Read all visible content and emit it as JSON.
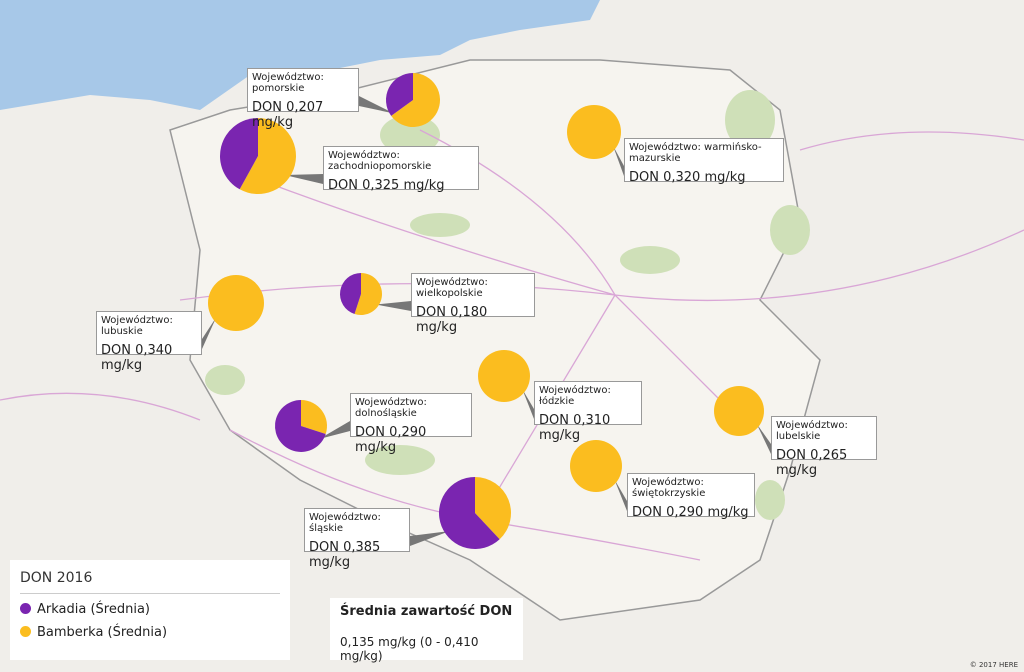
{
  "regions": [
    {
      "label": "Województwo: pomorskie",
      "value": "DON 0,207 mg/kg",
      "shares": [
        35,
        65
      ]
    },
    {
      "label": "Województwo: zachodniopomorskie",
      "value": "DON 0,325 mg/kg",
      "shares": [
        42,
        58
      ]
    },
    {
      "label": "Województwo: warmińsko-mazurskie",
      "value": "DON 0,320 mg/kg",
      "shares": [
        0,
        100
      ]
    },
    {
      "label": "Województwo: wielkopolskie",
      "value": "DON 0,180 mg/kg",
      "shares": [
        45,
        55
      ]
    },
    {
      "label": "Województwo: lubuskie",
      "value": "DON 0,340 mg/kg",
      "shares": [
        0,
        100
      ]
    },
    {
      "label": "Województwo: łódzkie",
      "value": "DON 0,310 mg/kg",
      "shares": [
        0,
        100
      ]
    },
    {
      "label": "Województwo: dolnośląskie",
      "value": "DON 0,290 mg/kg",
      "shares": [
        70,
        30
      ]
    },
    {
      "label": "Województwo: lubelskie",
      "value": "DON 0,265 mg/kg",
      "shares": [
        0,
        100
      ]
    },
    {
      "label": "Województwo: świętokrzyskie",
      "value": "DON 0,290 mg/kg",
      "shares": [
        0,
        100
      ]
    },
    {
      "label": "Województwo: śląskie",
      "value": "DON 0,385 mg/kg",
      "shares": [
        62,
        38
      ]
    }
  ],
  "legend": {
    "title": "DON 2016",
    "items": [
      {
        "name": "Arkadia (Średnia)",
        "color": "#7a25b0"
      },
      {
        "name": "Bamberka (Średnia)",
        "color": "#fbbd1f"
      }
    ]
  },
  "summary": {
    "title": "Średnia zawartość DON",
    "text": "0,135 mg/kg (0 - 0,410 mg/kg)"
  },
  "attribution": "© 2017 HERE"
}
